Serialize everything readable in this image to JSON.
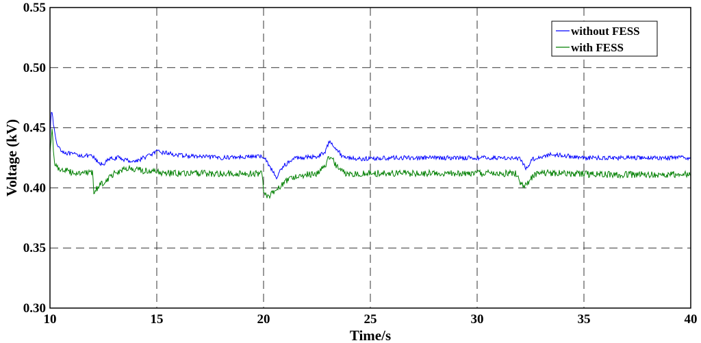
{
  "chart_data": {
    "type": "line",
    "title": "",
    "xlabel": "Time/s",
    "ylabel": "Voltage (kV)",
    "xlim": [
      10,
      40
    ],
    "ylim": [
      0.3,
      0.55
    ],
    "grid": true,
    "legend_position": "top-right",
    "x_ticks": [
      "10",
      "15",
      "20",
      "25",
      "30",
      "35",
      "40"
    ],
    "y_ticks": [
      "0.30",
      "0.35",
      "0.40",
      "0.45",
      "0.50",
      "0.55"
    ],
    "series": [
      {
        "name": "without FESS",
        "color": "#0000ff",
        "noise": 0.0018,
        "points": [
          [
            10.0,
            0.44
          ],
          [
            10.05,
            0.466
          ],
          [
            10.15,
            0.455
          ],
          [
            10.3,
            0.437
          ],
          [
            10.6,
            0.43
          ],
          [
            11.0,
            0.428
          ],
          [
            11.5,
            0.427
          ],
          [
            12.0,
            0.426
          ],
          [
            12.3,
            0.42
          ],
          [
            12.5,
            0.42
          ],
          [
            12.8,
            0.424
          ],
          [
            13.2,
            0.425
          ],
          [
            13.6,
            0.423
          ],
          [
            14.0,
            0.422
          ],
          [
            14.5,
            0.426
          ],
          [
            15.0,
            0.43
          ],
          [
            15.5,
            0.429
          ],
          [
            16.0,
            0.427
          ],
          [
            17.0,
            0.426
          ],
          [
            18.0,
            0.425
          ],
          [
            19.0,
            0.426
          ],
          [
            20.0,
            0.426
          ],
          [
            20.3,
            0.418
          ],
          [
            20.6,
            0.408
          ],
          [
            20.9,
            0.418
          ],
          [
            21.5,
            0.425
          ],
          [
            22.5,
            0.426
          ],
          [
            22.9,
            0.43
          ],
          [
            23.1,
            0.44
          ],
          [
            23.3,
            0.435
          ],
          [
            23.7,
            0.426
          ],
          [
            24.5,
            0.424
          ],
          [
            26.0,
            0.425
          ],
          [
            28.0,
            0.425
          ],
          [
            30.0,
            0.425
          ],
          [
            31.5,
            0.425
          ],
          [
            32.0,
            0.424
          ],
          [
            32.3,
            0.416
          ],
          [
            32.6,
            0.424
          ],
          [
            33.5,
            0.428
          ],
          [
            35.0,
            0.425
          ],
          [
            37.0,
            0.425
          ],
          [
            40.0,
            0.425
          ]
        ]
      },
      {
        "name": "with FESS",
        "color": "#007f00",
        "noise": 0.0028,
        "points": [
          [
            10.0,
            0.43
          ],
          [
            10.1,
            0.448
          ],
          [
            10.2,
            0.422
          ],
          [
            10.4,
            0.416
          ],
          [
            11.0,
            0.413
          ],
          [
            12.0,
            0.412
          ],
          [
            12.05,
            0.396
          ],
          [
            12.3,
            0.402
          ],
          [
            12.6,
            0.406
          ],
          [
            13.0,
            0.412
          ],
          [
            13.5,
            0.416
          ],
          [
            14.0,
            0.415
          ],
          [
            15.0,
            0.413
          ],
          [
            16.0,
            0.412
          ],
          [
            17.0,
            0.412
          ],
          [
            18.0,
            0.412
          ],
          [
            19.0,
            0.412
          ],
          [
            19.95,
            0.412
          ],
          [
            20.0,
            0.398
          ],
          [
            20.2,
            0.393
          ],
          [
            20.5,
            0.397
          ],
          [
            21.0,
            0.405
          ],
          [
            21.5,
            0.41
          ],
          [
            22.5,
            0.412
          ],
          [
            22.9,
            0.418
          ],
          [
            23.05,
            0.427
          ],
          [
            23.4,
            0.419
          ],
          [
            23.8,
            0.412
          ],
          [
            24.5,
            0.412
          ],
          [
            26.0,
            0.412
          ],
          [
            28.0,
            0.412
          ],
          [
            30.0,
            0.412
          ],
          [
            31.0,
            0.412
          ],
          [
            31.9,
            0.412
          ],
          [
            32.0,
            0.402
          ],
          [
            32.3,
            0.402
          ],
          [
            32.6,
            0.41
          ],
          [
            33.0,
            0.413
          ],
          [
            34.0,
            0.412
          ],
          [
            36.0,
            0.411
          ],
          [
            38.0,
            0.411
          ],
          [
            40.0,
            0.411
          ]
        ]
      }
    ]
  }
}
